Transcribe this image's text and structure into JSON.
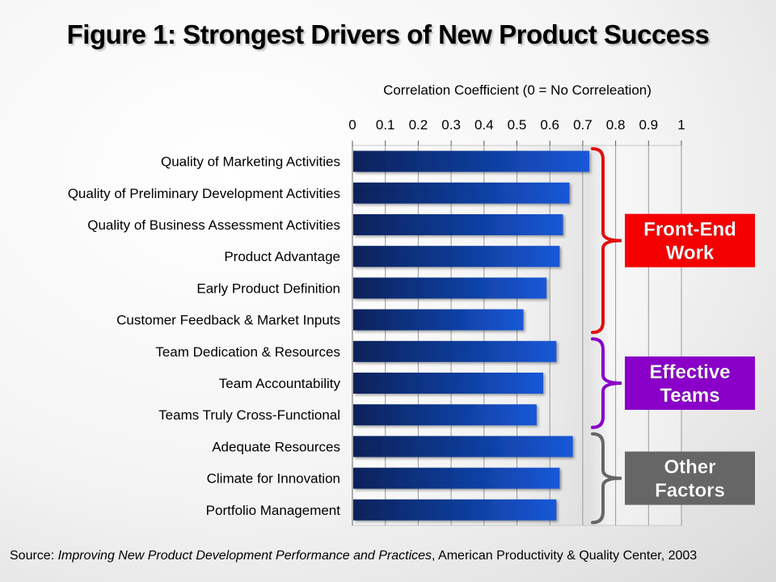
{
  "title": "Figure 1: Strongest Drivers of New Product Success",
  "source": {
    "prefix": "Source: ",
    "work": "Improving New Product Development Performance and Practices",
    "suffix": ", American Productivity & Quality Center, 2003"
  },
  "chart_data": {
    "type": "bar",
    "orientation": "horizontal",
    "xlabel": "Correlation Coefficient (0 = No Correleation)",
    "xlim": [
      0,
      1
    ],
    "xticks": [
      "0",
      "0.1",
      "0.2",
      "0.3",
      "0.4",
      "0.5",
      "0.6",
      "0.7",
      "0.8",
      "0.9",
      "1"
    ],
    "grid": true,
    "categories": [
      "Quality of Marketing Activities",
      "Quality of Preliminary Development Activities",
      "Quality of Business Assessment Activities",
      "Product Advantage",
      "Early Product Definition",
      "Customer Feedback & Market Inputs",
      "Team Dedication & Resources",
      "Team Accountability",
      "Teams Truly Cross-Functional",
      "Adequate Resources",
      "Climate for Innovation",
      "Portfolio Management"
    ],
    "values": [
      0.72,
      0.66,
      0.64,
      0.63,
      0.59,
      0.52,
      0.62,
      0.58,
      0.56,
      0.67,
      0.63,
      0.62
    ],
    "bar_color": "#1040a8",
    "groups": [
      {
        "label": [
          "Front-End",
          "Work"
        ],
        "start": 0,
        "end": 5,
        "color": "#f50000",
        "bracket_color": "#e01010"
      },
      {
        "label": [
          "Effective",
          "Teams"
        ],
        "start": 6,
        "end": 8,
        "color": "#8a00c8",
        "bracket_color": "#8a00c8"
      },
      {
        "label": [
          "Other",
          "Factors"
        ],
        "start": 9,
        "end": 11,
        "color": "#666666",
        "bracket_color": "#666666"
      }
    ]
  }
}
